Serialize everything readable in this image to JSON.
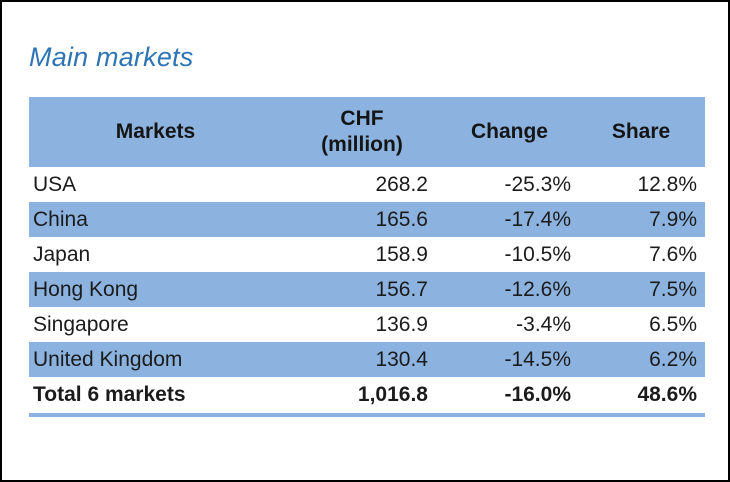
{
  "page": {
    "title": "Main markets",
    "colors": {
      "title_blue": "#2E75B6",
      "band_blue": "#8CB3DF",
      "text": "#1b1b1b",
      "frame_border": "#000000"
    }
  },
  "table": {
    "headers": {
      "markets": "Markets",
      "chf_line1": "CHF",
      "chf_line2": "(million)",
      "change": "Change",
      "share": "Share"
    },
    "rows": [
      {
        "market": "USA",
        "chf": "268.2",
        "change": "-25.3%",
        "share": "12.8%"
      },
      {
        "market": "China",
        "chf": "165.6",
        "change": "-17.4%",
        "share": "7.9%"
      },
      {
        "market": "Japan",
        "chf": "158.9",
        "change": "-10.5%",
        "share": "7.6%"
      },
      {
        "market": "Hong Kong",
        "chf": "156.7",
        "change": "-12.6%",
        "share": "7.5%"
      },
      {
        "market": "Singapore",
        "chf": "136.9",
        "change": "-3.4%",
        "share": "6.5%"
      },
      {
        "market": "United Kingdom",
        "chf": "130.4",
        "change": "-14.5%",
        "share": "6.2%"
      }
    ],
    "total": {
      "market": "Total 6 markets",
      "chf": "1,016.8",
      "change": "-16.0%",
      "share": "48.6%"
    }
  },
  "chart_data": {
    "type": "table",
    "title": "Main markets",
    "columns": [
      "Markets",
      "CHF (million)",
      "Change",
      "Share"
    ],
    "rows": [
      [
        "USA",
        268.2,
        "-25.3%",
        "12.8%"
      ],
      [
        "China",
        165.6,
        "-17.4%",
        "7.9%"
      ],
      [
        "Japan",
        158.9,
        "-10.5%",
        "7.6%"
      ],
      [
        "Hong Kong",
        156.7,
        "-12.6%",
        "7.5%"
      ],
      [
        "Singapore",
        136.9,
        "-3.4%",
        "6.5%"
      ],
      [
        "United Kingdom",
        130.4,
        "-14.5%",
        "6.2%"
      ]
    ],
    "total_row": [
      "Total 6 markets",
      1016.8,
      "-16.0%",
      "48.6%"
    ],
    "layout_hints": {
      "banded_rows": true,
      "band_color": "#8CB3DF",
      "header_background": "#8CB3DF",
      "value_alignment": "right",
      "total_row_bold": true
    }
  }
}
